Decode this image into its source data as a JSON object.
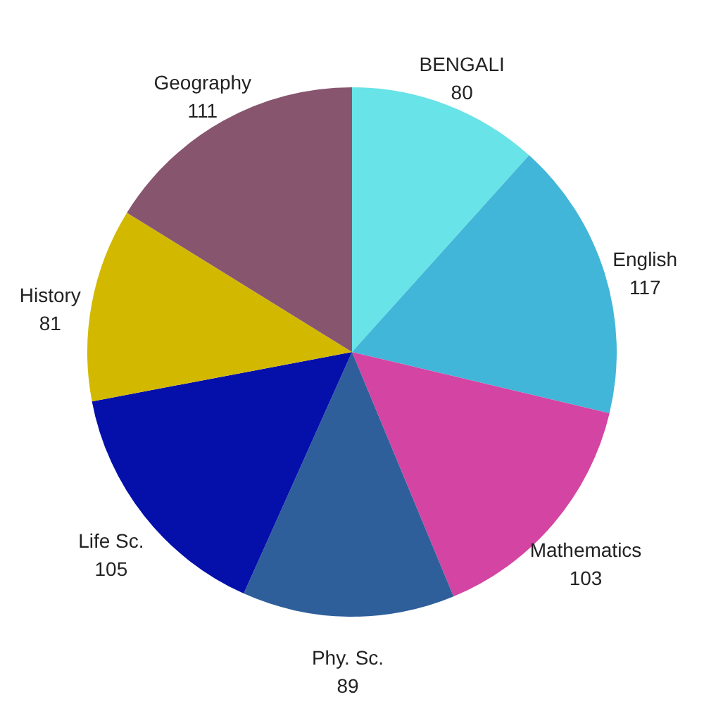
{
  "chart_data": {
    "type": "pie",
    "categories": [
      "BENGALI",
      "English",
      "Mathematics",
      "Phy. Sc.",
      "Life Sc.",
      "History",
      "Geography"
    ],
    "values": [
      80,
      117,
      103,
      89,
      105,
      81,
      111
    ],
    "colors": [
      "#68e3e8",
      "#42b6d8",
      "#d444a2",
      "#2e5f9a",
      "#0510ab",
      "#d2b900",
      "#88556f"
    ],
    "data_labels": true,
    "legend": false
  }
}
